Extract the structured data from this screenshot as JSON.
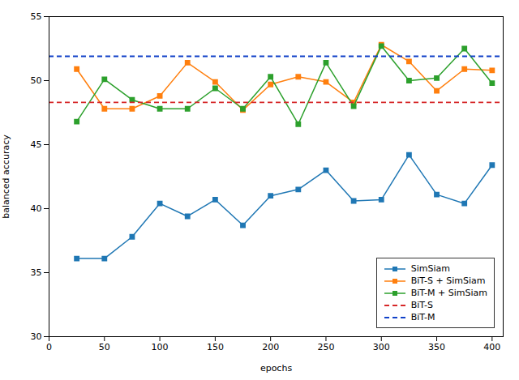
{
  "chart_data": {
    "type": "line",
    "xlabel": "epochs",
    "ylabel": "balanced accuracy",
    "x": [
      25,
      50,
      75,
      100,
      125,
      150,
      175,
      200,
      225,
      250,
      275,
      300,
      325,
      350,
      375,
      400
    ],
    "series": [
      {
        "name": "SimSiam",
        "color": "#1f77b4",
        "marker": "square",
        "line_style": "solid",
        "values": [
          36.1,
          36.1,
          37.8,
          40.4,
          39.4,
          40.7,
          38.7,
          41.0,
          41.5,
          43.0,
          40.6,
          40.7,
          44.2,
          41.1,
          40.4,
          43.4
        ]
      },
      {
        "name": "BiT-S + SimSiam",
        "color": "#ff7f0e",
        "marker": "square",
        "line_style": "solid",
        "values": [
          50.9,
          47.8,
          47.8,
          48.8,
          51.4,
          49.9,
          47.7,
          49.7,
          50.3,
          49.9,
          48.3,
          52.8,
          51.5,
          49.2,
          50.9,
          50.8
        ]
      },
      {
        "name": "BiT-M + SimSiam",
        "color": "#2ca02c",
        "marker": "square",
        "line_style": "solid",
        "values": [
          46.8,
          50.1,
          48.5,
          47.8,
          47.8,
          49.4,
          47.8,
          50.3,
          46.6,
          51.4,
          48.0,
          52.7,
          50.0,
          50.2,
          52.5,
          49.8
        ]
      },
      {
        "name": "BiT-S",
        "type": "hline",
        "color": "#d62728",
        "line_style": "dashed",
        "value": 48.3
      },
      {
        "name": "BiT-M",
        "type": "hline",
        "color": "#1040c8",
        "line_style": "dashed",
        "value": 51.9
      }
    ],
    "xlim": [
      0,
      410
    ],
    "xticks": [
      0,
      50,
      100,
      150,
      200,
      250,
      300,
      350,
      400
    ],
    "ylim": [
      30,
      55
    ],
    "yticks": [
      30,
      35,
      40,
      45,
      50,
      55
    ],
    "grid": false,
    "legend": "lower right"
  }
}
